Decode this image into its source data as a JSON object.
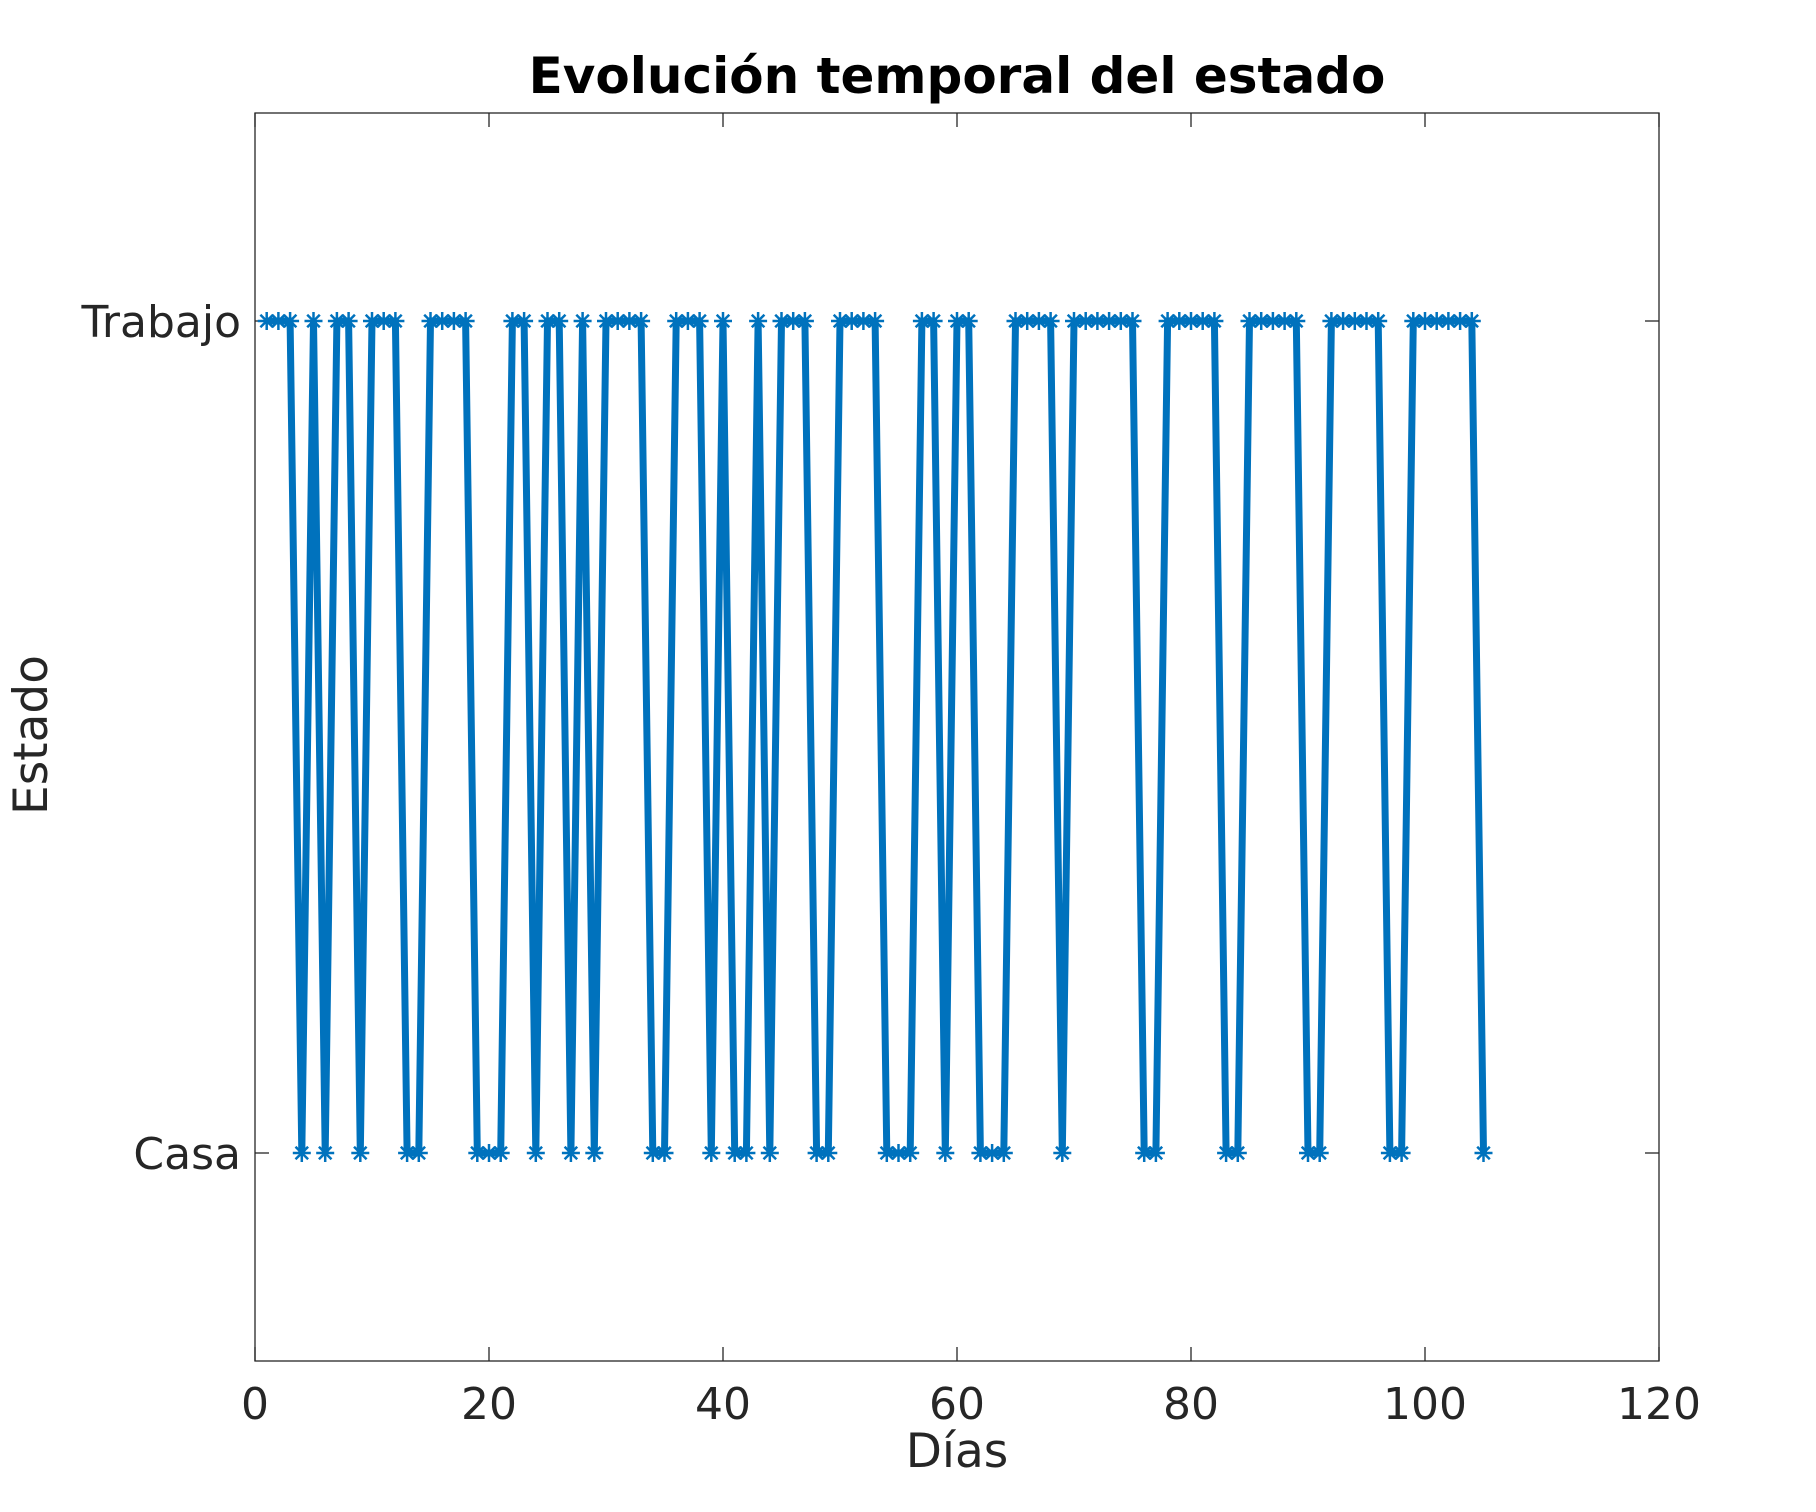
{
  "chart_data": {
    "type": "line",
    "title": "Evolución temporal del estado",
    "xlabel": "Días",
    "ylabel": "Estado",
    "xlim": [
      0,
      120
    ],
    "ylim": [
      0.75,
      2.25
    ],
    "xticks": [
      0,
      20,
      40,
      60,
      80,
      100,
      120
    ],
    "yticks": [
      {
        "value": 1,
        "label": "Casa"
      },
      {
        "value": 2,
        "label": "Trabajo"
      }
    ],
    "grid": false,
    "legend": "none",
    "series": [
      {
        "color": "#0072BD",
        "marker": "asterisk",
        "x": [
          1,
          2,
          3,
          4,
          5,
          6,
          7,
          8,
          9,
          10,
          11,
          12,
          13,
          14,
          15,
          16,
          17,
          18,
          19,
          20,
          21,
          22,
          23,
          24,
          25,
          26,
          27,
          28,
          29,
          30,
          31,
          32,
          33,
          34,
          35,
          36,
          37,
          38,
          39,
          40,
          41,
          42,
          43,
          44,
          45,
          46,
          47,
          48,
          49,
          50,
          51,
          52,
          53,
          54,
          55,
          56,
          57,
          58,
          59,
          60,
          61,
          62,
          63,
          64,
          65,
          66,
          67,
          68,
          69,
          70,
          71,
          72,
          73,
          74,
          75,
          76,
          77,
          78,
          79,
          80,
          81,
          82,
          83,
          84,
          85,
          86,
          87,
          88,
          89,
          90,
          91,
          92,
          93,
          94,
          95,
          96,
          97,
          98,
          99,
          100,
          101,
          102,
          103,
          104,
          105
        ],
        "y": [
          2,
          2,
          2,
          1,
          2,
          1,
          2,
          2,
          1,
          2,
          2,
          2,
          1,
          1,
          2,
          2,
          2,
          2,
          1,
          1,
          1,
          2,
          2,
          1,
          2,
          2,
          1,
          2,
          1,
          2,
          2,
          2,
          2,
          1,
          1,
          2,
          2,
          2,
          1,
          2,
          1,
          1,
          2,
          1,
          2,
          2,
          2,
          1,
          1,
          2,
          2,
          2,
          2,
          1,
          1,
          1,
          2,
          2,
          1,
          2,
          2,
          1,
          1,
          1,
          2,
          2,
          2,
          2,
          1,
          2,
          2,
          2,
          2,
          2,
          2,
          1,
          1,
          2,
          2,
          2,
          2,
          2,
          1,
          1,
          2,
          2,
          2,
          2,
          2,
          1,
          1,
          2,
          2,
          2,
          2,
          2,
          1,
          1,
          2,
          2,
          2,
          2,
          2,
          2,
          1
        ]
      }
    ]
  }
}
